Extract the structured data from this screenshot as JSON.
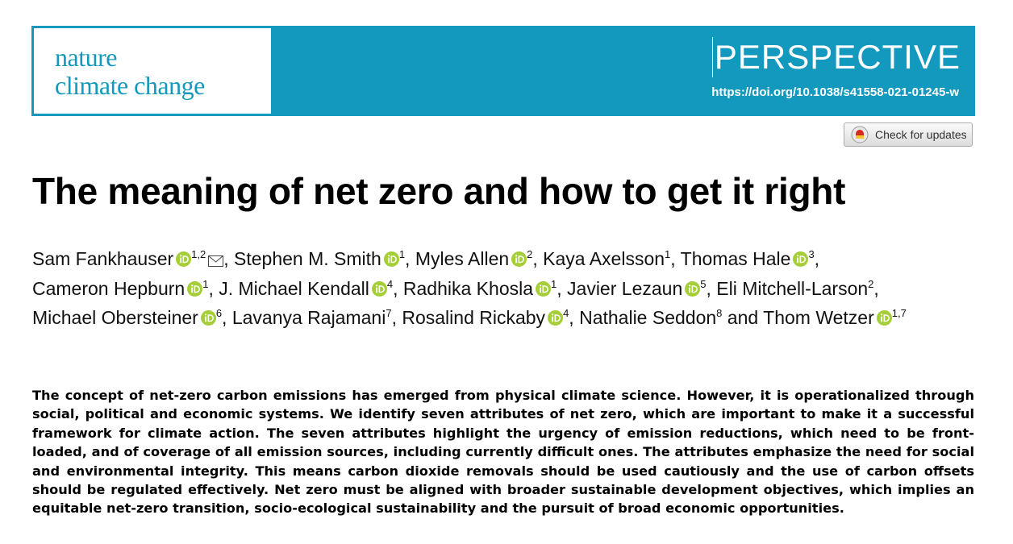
{
  "header": {
    "journal_line1": "nature",
    "journal_line2": "climate change",
    "article_type": "PERSPECTIVE",
    "doi": "https://doi.org/10.1038/s41558-021-01245-w"
  },
  "check_for_updates": "Check for updates",
  "title": "The meaning of net zero and how to get it right",
  "separator": ",",
  "conjunction": "and",
  "authors": [
    {
      "name": "Sam Fankhauser",
      "orcid": true,
      "affiliations": "1,2",
      "email": true
    },
    {
      "name": "Stephen M. Smith",
      "orcid": true,
      "affiliations": "1"
    },
    {
      "name": "Myles Allen",
      "orcid": true,
      "affiliations": "2"
    },
    {
      "name": "Kaya Axelsson",
      "orcid": false,
      "affiliations": "1"
    },
    {
      "name": "Thomas Hale",
      "orcid": true,
      "affiliations": "3"
    },
    {
      "name": "Cameron Hepburn",
      "orcid": true,
      "affiliations": "1"
    },
    {
      "name": "J. Michael Kendall",
      "orcid": true,
      "affiliations": "4"
    },
    {
      "name": "Radhika Khosla",
      "orcid": true,
      "affiliations": "1"
    },
    {
      "name": "Javier Lezaun",
      "orcid": true,
      "affiliations": "5"
    },
    {
      "name": "Eli Mitchell-Larson",
      "orcid": false,
      "affiliations": "2"
    },
    {
      "name": "Michael Obersteiner",
      "orcid": true,
      "affiliations": "6"
    },
    {
      "name": "Lavanya Rajamani",
      "orcid": false,
      "affiliations": "7"
    },
    {
      "name": "Rosalind Rickaby",
      "orcid": true,
      "affiliations": "4"
    },
    {
      "name": "Nathalie Seddon",
      "orcid": false,
      "affiliations": "8"
    },
    {
      "name": "Thom Wetzer",
      "orcid": true,
      "affiliations": "1,7"
    }
  ],
  "abstract": "The concept of net-zero carbon emissions has emerged from physical climate science. However, it is operationalized through social, political and economic systems. We identify seven attributes of net zero, which are important to make it a successful framework for climate action. The seven attributes highlight the urgency of emission reductions, which need to be front-loaded, and of coverage of all emission sources, including currently difficult ones. The attributes emphasize the need for social and environmental integrity. This means carbon dioxide removals should be used cautiously and the use of carbon offsets should be regulated effectively. Net zero must be aligned with broader sustainable development objectives, which implies an equitable net-zero transition, socio-ecological sustainability and the pursuit of broad economic opportunities."
}
